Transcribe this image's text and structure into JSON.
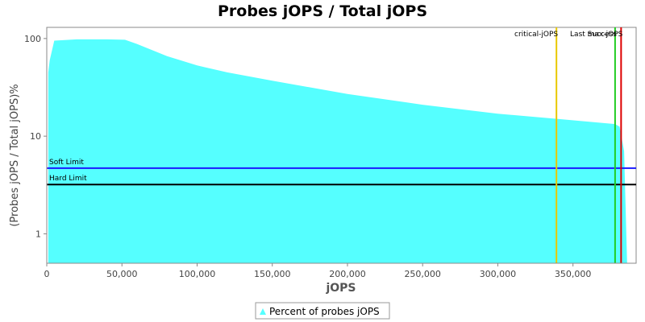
{
  "chart_data": {
    "type": "area",
    "title": "Probes jOPS / Total jOPS",
    "xlabel": "jOPS",
    "ylabel": "(Probes jOPS / Total jOPS)%",
    "xlim": [
      0,
      392000
    ],
    "ylim": [
      0.5,
      130
    ],
    "y_scale": "log",
    "x_ticks": [
      0,
      50000,
      100000,
      150000,
      200000,
      250000,
      300000,
      350000
    ],
    "x_tick_labels": [
      "0",
      "50,000",
      "100,000",
      "150,000",
      "200,000",
      "250,000",
      "300,000",
      "350,000"
    ],
    "y_ticks": [
      1,
      10,
      100
    ],
    "y_tick_labels": [
      "1",
      "10",
      "100"
    ],
    "grid": false,
    "legend_position": "bottom",
    "series": [
      {
        "name": "Percent of probes jOPS",
        "color": "#55ffff",
        "x": [
          1000,
          2000,
          5000,
          20000,
          40000,
          52000,
          60000,
          80000,
          100000,
          120000,
          150000,
          200000,
          250000,
          300000,
          340000,
          378000,
          381000,
          384000,
          386000
        ],
        "y": [
          45,
          60,
          95,
          98,
          98,
          97,
          88,
          66,
          53,
          45,
          37,
          27,
          21,
          17,
          15,
          13.3,
          12.5,
          7,
          0.5
        ]
      }
    ],
    "horizontal_lines": [
      {
        "label": "Soft Limit",
        "y": 4.7,
        "color": "#1a1aff"
      },
      {
        "label": "Hard Limit",
        "y": 3.2,
        "color": "#000000"
      }
    ],
    "vertical_markers": [
      {
        "label": "critical-jOPS",
        "x": 339000,
        "color": "#e8c800"
      },
      {
        "label": "Last Success",
        "x": 378000,
        "color": "#22cc22"
      },
      {
        "label": "max-jOPS",
        "x": 382000,
        "color": "#dd0000"
      }
    ]
  }
}
